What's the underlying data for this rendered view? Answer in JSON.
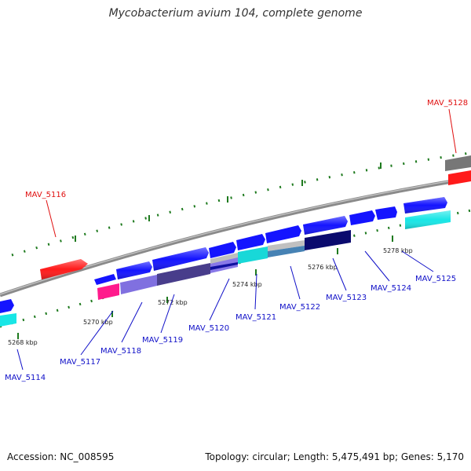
{
  "title": "Mycobacterium avium 104, complete genome",
  "footer": {
    "accession": "Accession: NC_008595",
    "summary": "Topology: circular; Length: 5,475,491 bp; Genes: 5,170"
  },
  "ticks": [
    "5268 kbp",
    "5270 kbp",
    "5272 kbp",
    "5274 kbp",
    "5276 kbp",
    "5278 kbp"
  ],
  "gene_labels": [
    {
      "id": "MAV_5114",
      "color": "#1010c8"
    },
    {
      "id": "MAV_5116",
      "color": "#e01010"
    },
    {
      "id": "MAV_5117",
      "color": "#1010c8"
    },
    {
      "id": "MAV_5118",
      "color": "#1010c8"
    },
    {
      "id": "MAV_5119",
      "color": "#1010c8"
    },
    {
      "id": "MAV_5120",
      "color": "#1010c8"
    },
    {
      "id": "MAV_5121",
      "color": "#1010c8"
    },
    {
      "id": "MAV_5122",
      "color": "#1010c8"
    },
    {
      "id": "MAV_5123",
      "color": "#1010c8"
    },
    {
      "id": "MAV_5124",
      "color": "#1010c8"
    },
    {
      "id": "MAV_5125",
      "color": "#1010c8"
    },
    {
      "id": "MAV_5128",
      "color": "#e01010"
    }
  ],
  "colors": {
    "backbone": "#8a8a8a",
    "tick_marks": "#1e7a1e",
    "forward_gene": "#1414ff",
    "rna_gene": "#ff1a1a",
    "pseudo_gene": "#777777"
  }
}
